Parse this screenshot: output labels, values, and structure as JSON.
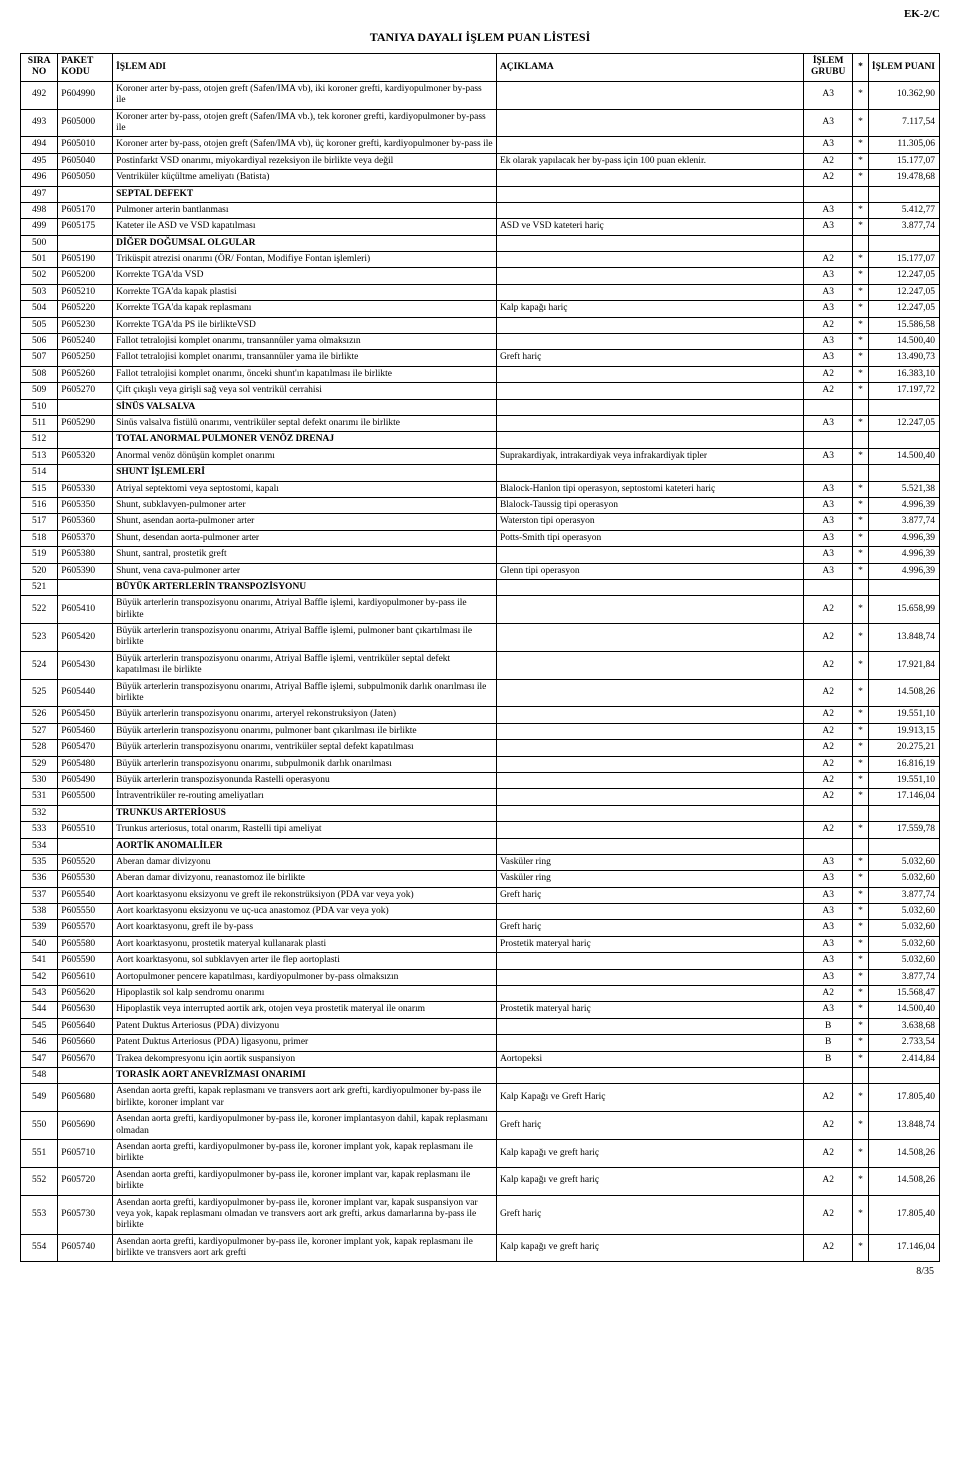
{
  "header_code": "EK-2/C",
  "title": "TANIYA DAYALI İŞLEM PUAN LİSTESİ",
  "footer": "8/35",
  "columns": {
    "sira": "SIRA NO",
    "kodu": "PAKET KODU",
    "adi": "İŞLEM ADI",
    "acik": "AÇIKLAMA",
    "grubu": "İŞLEM GRUBU",
    "star": "*",
    "puan": "İŞLEM PUANI"
  },
  "rows": [
    {
      "sira": "492",
      "kodu": "P604990",
      "adi": "Koroner arter by-pass, otojen greft (Safen/IMA vb), iki koroner grefti, kardiyopulmoner by-pass ile",
      "acik": "",
      "grubu": "A3",
      "star": "*",
      "puan": "10.362,90"
    },
    {
      "sira": "493",
      "kodu": "P605000",
      "adi": "Koroner arter by-pass, otojen greft (Safen/IMA vb.), tek koroner grefti, kardiyopulmoner by-pass ile",
      "acik": "",
      "grubu": "A3",
      "star": "*",
      "puan": "7.117,54"
    },
    {
      "sira": "494",
      "kodu": "P605010",
      "adi": "Koroner arter by-pass, otojen greft (Safen/IMA vb), üç koroner grefti, kardiyopulmoner by-pass ile",
      "acik": "",
      "grubu": "A3",
      "star": "*",
      "puan": "11.305,06"
    },
    {
      "sira": "495",
      "kodu": "P605040",
      "adi": "Postinfarkt VSD onarımı, miyokardiyal rezeksiyon ile birlikte veya değil",
      "acik": "Ek olarak yapılacak her by-pass için 100 puan eklenir.",
      "grubu": "A2",
      "star": "*",
      "puan": "15.177,07"
    },
    {
      "sira": "496",
      "kodu": "P605050",
      "adi": "Ventriküler küçültme ameliyatı (Batista)",
      "acik": "",
      "grubu": "A2",
      "star": "*",
      "puan": "19.478,68"
    },
    {
      "sira": "497",
      "kodu": "",
      "adi": "SEPTAL DEFEKT",
      "acik": "",
      "grubu": "",
      "star": "",
      "puan": "",
      "bold": true
    },
    {
      "sira": "498",
      "kodu": "P605170",
      "adi": "Pulmoner arterin bantlanması",
      "acik": "",
      "grubu": "A3",
      "star": "*",
      "puan": "5.412,77"
    },
    {
      "sira": "499",
      "kodu": "P605175",
      "adi": "Kateter ile ASD ve VSD kapatılması",
      "acik": "ASD ve VSD kateteri hariç",
      "grubu": "A3",
      "star": "*",
      "puan": "3.877,74"
    },
    {
      "sira": "500",
      "kodu": "",
      "adi": "DİĞER DOĞUMSAL OLGULAR",
      "acik": "",
      "grubu": "",
      "star": "",
      "puan": "",
      "bold": true
    },
    {
      "sira": "501",
      "kodu": "P605190",
      "adi": "Triküspit atrezisi onarımı (ÖR/ Fontan, Modifiye Fontan işlemleri)",
      "acik": "",
      "grubu": "A2",
      "star": "*",
      "puan": "15.177,07"
    },
    {
      "sira": "502",
      "kodu": "P605200",
      "adi": "Korrekte TGA'da VSD",
      "acik": "",
      "grubu": "A3",
      "star": "*",
      "puan": "12.247,05"
    },
    {
      "sira": "503",
      "kodu": "P605210",
      "adi": "Korrekte TGA'da kapak plastisi",
      "acik": "",
      "grubu": "A3",
      "star": "*",
      "puan": "12.247,05"
    },
    {
      "sira": "504",
      "kodu": "P605220",
      "adi": "Korrekte TGA'da kapak replasmanı",
      "acik": "Kalp kapağı hariç",
      "grubu": "A3",
      "star": "*",
      "puan": "12.247,05"
    },
    {
      "sira": "505",
      "kodu": "P605230",
      "adi": "Korrekte TGA'da PS ile birlikteVSD",
      "acik": "",
      "grubu": "A2",
      "star": "*",
      "puan": "15.586,58"
    },
    {
      "sira": "506",
      "kodu": "P605240",
      "adi": "Fallot tetralojisi komplet onarımı, transannüler yama olmaksızın",
      "acik": "",
      "grubu": "A3",
      "star": "*",
      "puan": "14.500,40"
    },
    {
      "sira": "507",
      "kodu": "P605250",
      "adi": "Fallot tetralojisi komplet onarımı, transannüler yama ile birlikte",
      "acik": "Greft hariç",
      "grubu": "A3",
      "star": "*",
      "puan": "13.490,73"
    },
    {
      "sira": "508",
      "kodu": "P605260",
      "adi": "Fallot tetralojisi komplet onarımı, önceki shunt'ın kapatılması ile birlikte",
      "acik": "",
      "grubu": "A2",
      "star": "*",
      "puan": "16.383,10"
    },
    {
      "sira": "509",
      "kodu": "P605270",
      "adi": "Çift çıkışlı veya girişli sağ veya sol ventrikül cerrahisi",
      "acik": "",
      "grubu": "A2",
      "star": "*",
      "puan": "17.197,72"
    },
    {
      "sira": "510",
      "kodu": "",
      "adi": "SİNÜS VALSALVA",
      "acik": "",
      "grubu": "",
      "star": "",
      "puan": "",
      "bold": true
    },
    {
      "sira": "511",
      "kodu": "P605290",
      "adi": "Sinüs valsalva fistülü onarımı, ventriküler septal defekt onarımı ile birlikte",
      "acik": "",
      "grubu": "A3",
      "star": "*",
      "puan": "12.247,05"
    },
    {
      "sira": "512",
      "kodu": "",
      "adi": "TOTAL ANORMAL PULMONER VENÖZ DRENAJ",
      "acik": "",
      "grubu": "",
      "star": "",
      "puan": "",
      "bold": true
    },
    {
      "sira": "513",
      "kodu": "P605320",
      "adi": "Anormal venöz dönüşün komplet onarımı",
      "acik": "Suprakardiyak, intrakardiyak veya infrakardiyak tipler",
      "grubu": "A3",
      "star": "*",
      "puan": "14.500,40"
    },
    {
      "sira": "514",
      "kodu": "",
      "adi": "SHUNT İŞLEMLERİ",
      "acik": "",
      "grubu": "",
      "star": "",
      "puan": "",
      "bold": true
    },
    {
      "sira": "515",
      "kodu": "P605330",
      "adi": "Atriyal septektomi veya septostomi, kapalı",
      "acik": "Blalock-Hanlon tipi operasyon, septostomi kateteri hariç",
      "grubu": "A3",
      "star": "*",
      "puan": "5.521,38"
    },
    {
      "sira": "516",
      "kodu": "P605350",
      "adi": "Shunt, subklavyen-pulmoner arter",
      "acik": "Blalock-Taussig tipi operasyon",
      "grubu": "A3",
      "star": "*",
      "puan": "4.996,39"
    },
    {
      "sira": "517",
      "kodu": "P605360",
      "adi": "Shunt, asendan aorta-pulmoner arter",
      "acik": "Waterston tipi operasyon",
      "grubu": "A3",
      "star": "*",
      "puan": "3.877,74"
    },
    {
      "sira": "518",
      "kodu": "P605370",
      "adi": "Shunt, desendan aorta-pulmoner arter",
      "acik": "Potts-Smith tipi operasyon",
      "grubu": "A3",
      "star": "*",
      "puan": "4.996,39"
    },
    {
      "sira": "519",
      "kodu": "P605380",
      "adi": "Shunt, santral, prostetik greft",
      "acik": "",
      "grubu": "A3",
      "star": "*",
      "puan": "4.996,39"
    },
    {
      "sira": "520",
      "kodu": "P605390",
      "adi": "Shunt, vena cava-pulmoner arter",
      "acik": "Glenn tipi operasyon",
      "grubu": "A3",
      "star": "*",
      "puan": "4.996,39"
    },
    {
      "sira": "521",
      "kodu": "",
      "adi": "BÜYÜK ARTERLERİN TRANSPOZİSYONU",
      "acik": "",
      "grubu": "",
      "star": "",
      "puan": "",
      "bold": true
    },
    {
      "sira": "522",
      "kodu": "P605410",
      "adi": "Büyük arterlerin transpozisyonu onarımı, Atriyal Baffle işlemi, kardiyopulmoner by-pass ile birlikte",
      "acik": "",
      "grubu": "A2",
      "star": "*",
      "puan": "15.658,99"
    },
    {
      "sira": "523",
      "kodu": "P605420",
      "adi": "Büyük arterlerin transpozisyonu onarımı, Atriyal Baffle işlemi, pulmoner bant çıkartılması ile birlikte",
      "acik": "",
      "grubu": "A2",
      "star": "*",
      "puan": "13.848,74"
    },
    {
      "sira": "524",
      "kodu": "P605430",
      "adi": "Büyük arterlerin transpozisyonu onarımı, Atriyal Baffle işlemi, ventriküler septal defekt kapatılması ile birlikte",
      "acik": "",
      "grubu": "A2",
      "star": "*",
      "puan": "17.921,84"
    },
    {
      "sira": "525",
      "kodu": "P605440",
      "adi": "Büyük arterlerin transpozisyonu onarımı, Atriyal Baffle işlemi, subpulmonik darlık onarılması ile birlikte",
      "acik": "",
      "grubu": "A2",
      "star": "*",
      "puan": "14.508,26"
    },
    {
      "sira": "526",
      "kodu": "P605450",
      "adi": "Büyük arterlerin transpozisyonu onarımı, arteryel rekonstruksiyon (Jaten)",
      "acik": "",
      "grubu": "A2",
      "star": "*",
      "puan": "19.551,10"
    },
    {
      "sira": "527",
      "kodu": "P605460",
      "adi": "Büyük arterlerin transpozisyonu onarımı, pulmoner bant çıkarılması ile birlikte",
      "acik": "",
      "grubu": "A2",
      "star": "*",
      "puan": "19.913,15"
    },
    {
      "sira": "528",
      "kodu": "P605470",
      "adi": "Büyük arterlerin transpozisyonu onarımı, ventriküler septal defekt kapatılması",
      "acik": "",
      "grubu": "A2",
      "star": "*",
      "puan": "20.275,21"
    },
    {
      "sira": "529",
      "kodu": "P605480",
      "adi": "Büyük arterlerin transpozisyonu onarımı, subpulmonik darlık onarılması",
      "acik": "",
      "grubu": "A2",
      "star": "*",
      "puan": "16.816,19"
    },
    {
      "sira": "530",
      "kodu": "P605490",
      "adi": "Büyük arterlerin transpozisyonunda Rastelli operasyonu",
      "acik": "",
      "grubu": "A2",
      "star": "*",
      "puan": "19.551,10"
    },
    {
      "sira": "531",
      "kodu": "P605500",
      "adi": "İntraventriküler re-routing ameliyatları",
      "acik": "",
      "grubu": "A2",
      "star": "*",
      "puan": "17.146,04"
    },
    {
      "sira": "532",
      "kodu": "",
      "adi": "TRUNKUS ARTERİOSUS",
      "acik": "",
      "grubu": "",
      "star": "",
      "puan": "",
      "bold": true
    },
    {
      "sira": "533",
      "kodu": "P605510",
      "adi": "Trunkus arteriosus, total onarım, Rastelli tipi ameliyat",
      "acik": "",
      "grubu": "A2",
      "star": "*",
      "puan": "17.559,78"
    },
    {
      "sira": "534",
      "kodu": "",
      "adi": "AORTİK ANOMALİLER",
      "acik": "",
      "grubu": "",
      "star": "",
      "puan": "",
      "bold": true
    },
    {
      "sira": "535",
      "kodu": "P605520",
      "adi": "Aberan damar divizyonu",
      "acik": "Vasküler ring",
      "grubu": "A3",
      "star": "*",
      "puan": "5.032,60"
    },
    {
      "sira": "536",
      "kodu": "P605530",
      "adi": "Aberan damar divizyonu, reanastomoz ile birlikte",
      "acik": "Vasküler ring",
      "grubu": "A3",
      "star": "*",
      "puan": "5.032,60"
    },
    {
      "sira": "537",
      "kodu": "P605540",
      "adi": "Aort koarktasyonu eksizyonu ve greft ile rekonstrüksiyon (PDA var veya yok)",
      "acik": "Greft hariç",
      "grubu": "A3",
      "star": "*",
      "puan": "3.877,74"
    },
    {
      "sira": "538",
      "kodu": "P605550",
      "adi": "Aort koarktasyonu eksizyonu ve uç-uca anastomoz (PDA var veya yok)",
      "acik": "",
      "grubu": "A3",
      "star": "*",
      "puan": "5.032,60"
    },
    {
      "sira": "539",
      "kodu": "P605570",
      "adi": "Aort koarktasyonu, greft ile by-pass",
      "acik": "Greft hariç",
      "grubu": "A3",
      "star": "*",
      "puan": "5.032,60"
    },
    {
      "sira": "540",
      "kodu": "P605580",
      "adi": "Aort koarktasyonu, prostetik materyal kullanarak plasti",
      "acik": "Prostetik materyal hariç",
      "grubu": "A3",
      "star": "*",
      "puan": "5.032,60"
    },
    {
      "sira": "541",
      "kodu": "P605590",
      "adi": "Aort koarktasyonu, sol subklavyen arter ile flep aortoplasti",
      "acik": "",
      "grubu": "A3",
      "star": "*",
      "puan": "5.032,60"
    },
    {
      "sira": "542",
      "kodu": "P605610",
      "adi": "Aortopulmoner pencere kapatılması, kardiyopulmoner by-pass olmaksızın",
      "acik": "",
      "grubu": "A3",
      "star": "*",
      "puan": "3.877,74"
    },
    {
      "sira": "543",
      "kodu": "P605620",
      "adi": "Hipoplastik sol kalp sendromu onarımı",
      "acik": "",
      "grubu": "A2",
      "star": "*",
      "puan": "15.568,47"
    },
    {
      "sira": "544",
      "kodu": "P605630",
      "adi": "Hipoplastik veya interrupted aortik ark, otojen veya prostetik materyal ile onarım",
      "acik": "Prostetik materyal hariç",
      "grubu": "A3",
      "star": "*",
      "puan": "14.500,40"
    },
    {
      "sira": "545",
      "kodu": "P605640",
      "adi": "Patent Duktus Arteriosus (PDA) divizyonu",
      "acik": "",
      "grubu": "B",
      "star": "*",
      "puan": "3.638,68"
    },
    {
      "sira": "546",
      "kodu": "P605660",
      "adi": "Patent Duktus Arteriosus (PDA) ligasyonu, primer",
      "acik": "",
      "grubu": "B",
      "star": "*",
      "puan": "2.733,54"
    },
    {
      "sira": "547",
      "kodu": "P605670",
      "adi": "Trakea dekompresyonu için aortik suspansiyon",
      "acik": "Aortopeksi",
      "grubu": "B",
      "star": "*",
      "puan": "2.414,84"
    },
    {
      "sira": "548",
      "kodu": "",
      "adi": "TORASİK AORT ANEVRİZMASI ONARIMI",
      "acik": "",
      "grubu": "",
      "star": "",
      "puan": "",
      "bold": true
    },
    {
      "sira": "549",
      "kodu": "P605680",
      "adi": "Asendan aorta grefti, kapak replasmanı ve transvers aort ark grefti, kardiyopulmoner by-pass ile birlikte, koroner implant var",
      "acik": "Kalp Kapağı ve Greft Hariç",
      "grubu": "A2",
      "star": "*",
      "puan": "17.805,40"
    },
    {
      "sira": "550",
      "kodu": "P605690",
      "adi": "Asendan aorta grefti, kardiyopulmoner by-pass ile, koroner implantasyon dahil, kapak replasmanı olmadan",
      "acik": "Greft hariç",
      "grubu": "A2",
      "star": "*",
      "puan": "13.848,74"
    },
    {
      "sira": "551",
      "kodu": "P605710",
      "adi": "Asendan aorta grefti, kardiyopulmoner by-pass ile, koroner implant yok, kapak replasmanı ile birlikte",
      "acik": "Kalp kapağı ve greft hariç",
      "grubu": "A2",
      "star": "*",
      "puan": "14.508,26"
    },
    {
      "sira": "552",
      "kodu": "P605720",
      "adi": "Asendan aorta grefti, kardiyopulmoner by-pass ile, koroner implant var, kapak replasmanı ile birlikte",
      "acik": "Kalp kapağı ve greft hariç",
      "grubu": "A2",
      "star": "*",
      "puan": "14.508,26"
    },
    {
      "sira": "553",
      "kodu": "P605730",
      "adi": "Asendan aorta grefti, kardiyopulmoner by-pass ile, koroner implant var, kapak suspansiyon var veya yok, kapak replasmanı olmadan ve transvers aort ark grefti, arkus damarlarına by-pass ile birlikte",
      "acik": "Greft hariç",
      "grubu": "A2",
      "star": "*",
      "puan": "17.805,40"
    },
    {
      "sira": "554",
      "kodu": "P605740",
      "adi": "Asendan aorta grefti, kardiyopulmoner by-pass ile, koroner implant yok, kapak replasmanı ile birlikte ve transvers aort ark grefti",
      "acik": "Kalp kapağı ve greft hariç",
      "grubu": "A2",
      "star": "*",
      "puan": "17.146,04"
    }
  ]
}
